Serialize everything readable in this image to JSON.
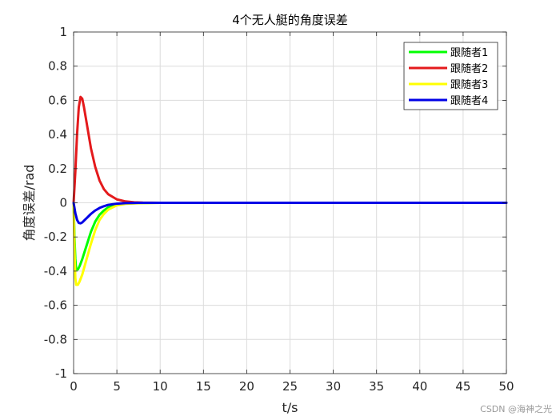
{
  "chart_data": {
    "type": "line",
    "title": "4个无人艇的角度误差",
    "xlabel": "t/s",
    "ylabel": "角度误差/rad",
    "xlim": [
      0,
      50
    ],
    "ylim": [
      -1,
      1
    ],
    "xticks": [
      "0",
      "5",
      "10",
      "15",
      "20",
      "25",
      "30",
      "35",
      "40",
      "45",
      "50"
    ],
    "yticks": [
      "-1",
      "-0.8",
      "-0.6",
      "-0.4",
      "-0.2",
      "0",
      "0.2",
      "0.4",
      "0.6",
      "0.8",
      "1"
    ],
    "grid": true,
    "legend_position": "top-right",
    "series": [
      {
        "name": "跟随者1",
        "color": "#00ff00",
        "x": [
          0,
          0.1,
          0.2,
          0.3,
          0.5,
          0.7,
          1.0,
          1.5,
          2.0,
          2.5,
          3.0,
          3.5,
          4.0,
          5.0,
          6.0,
          8.0,
          10.0,
          20.0,
          30.0,
          40.0,
          50.0
        ],
        "y": [
          0,
          -0.2,
          -0.33,
          -0.39,
          -0.39,
          -0.37,
          -0.33,
          -0.25,
          -0.17,
          -0.11,
          -0.07,
          -0.045,
          -0.027,
          -0.01,
          -0.004,
          -0.001,
          0,
          0,
          0,
          0,
          0
        ]
      },
      {
        "name": "跟随者2",
        "color": "#e41a1c",
        "x": [
          0,
          0.2,
          0.4,
          0.6,
          0.8,
          1.0,
          1.2,
          1.5,
          2.0,
          2.5,
          3.0,
          3.5,
          4.0,
          5.0,
          6.0,
          7.0,
          8.0,
          10.0,
          20.0,
          30.0,
          40.0,
          50.0
        ],
        "y": [
          0,
          0.18,
          0.4,
          0.56,
          0.62,
          0.61,
          0.56,
          0.47,
          0.32,
          0.21,
          0.13,
          0.08,
          0.05,
          0.02,
          0.008,
          0.003,
          0.001,
          0,
          0,
          0,
          0,
          0
        ]
      },
      {
        "name": "跟随者3",
        "color": "#ffff00",
        "x": [
          0,
          0.1,
          0.2,
          0.3,
          0.5,
          0.7,
          1.0,
          1.5,
          2.0,
          2.5,
          3.0,
          3.5,
          4.0,
          5.0,
          6.0,
          8.0,
          10.0,
          20.0,
          30.0,
          40.0,
          50.0
        ],
        "y": [
          0,
          -0.28,
          -0.44,
          -0.48,
          -0.48,
          -0.46,
          -0.42,
          -0.33,
          -0.24,
          -0.16,
          -0.1,
          -0.065,
          -0.04,
          -0.015,
          -0.006,
          -0.001,
          0,
          0,
          0,
          0,
          0
        ]
      },
      {
        "name": "跟随者4",
        "color": "#0000e6",
        "x": [
          0,
          0.2,
          0.4,
          0.6,
          0.8,
          1.0,
          1.3,
          1.6,
          2.0,
          2.5,
          3.0,
          3.5,
          4.0,
          5.0,
          6.0,
          8.0,
          10.0,
          20.0,
          30.0,
          40.0,
          50.0
        ],
        "y": [
          0,
          -0.06,
          -0.1,
          -0.118,
          -0.12,
          -0.115,
          -0.1,
          -0.085,
          -0.065,
          -0.045,
          -0.03,
          -0.02,
          -0.012,
          -0.005,
          -0.002,
          0,
          0,
          0,
          0,
          0,
          0
        ]
      }
    ]
  },
  "watermark": "CSDN @海神之光"
}
